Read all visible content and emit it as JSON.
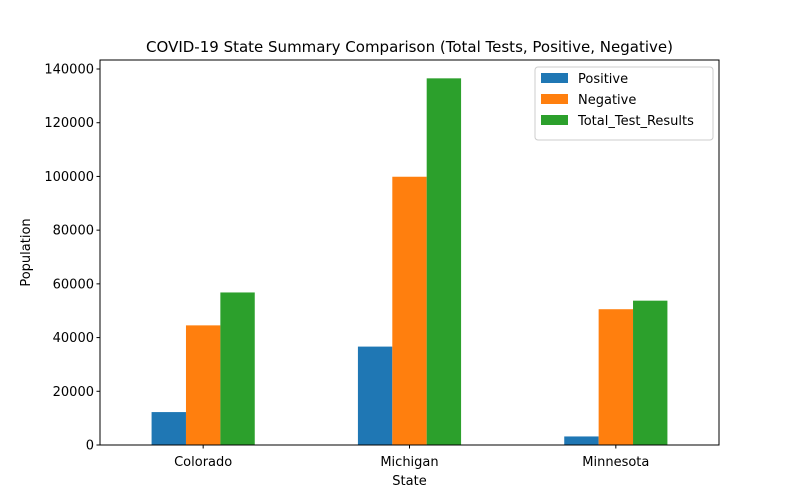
{
  "chart_data": {
    "type": "bar",
    "title": "COVID-19 State Summary Comparison (Total Tests, Positive, Negative)",
    "xlabel": "State",
    "ylabel": "Population",
    "categories": [
      "Colorado",
      "Michigan",
      "Minnesota"
    ],
    "series": [
      {
        "name": "Positive",
        "color": "#1f77b4",
        "values": [
          12256,
          36641,
          3185
        ]
      },
      {
        "name": "Negative",
        "color": "#ff7f0e",
        "values": [
          44544,
          99886,
          50558
        ]
      },
      {
        "name": "Total_Test_Results",
        "color": "#2ca02c",
        "values": [
          56800,
          136527,
          53743
        ]
      }
    ],
    "ylim": [
      0,
      143355
    ],
    "yticks": [
      0,
      20000,
      40000,
      60000,
      80000,
      100000,
      120000,
      140000
    ],
    "ytick_labels": [
      "0",
      "20000",
      "40000",
      "60000",
      "80000",
      "100000",
      "120000",
      "140000"
    ],
    "grid": false,
    "legend_position": "top-right"
  }
}
